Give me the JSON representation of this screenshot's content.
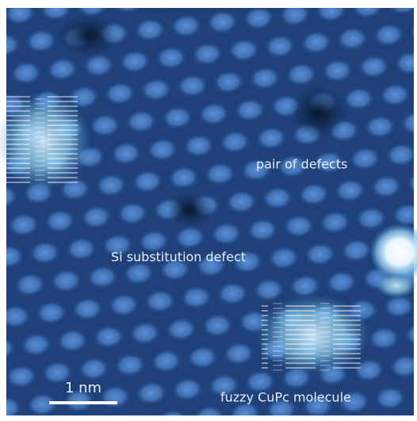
{
  "annotations": [
    {
      "label": "pair of defects"
    },
    {
      "label": "Si substitution defect"
    },
    {
      "label": "fuzzy CuPc molecule"
    }
  ],
  "scale_bar": {
    "label": "1 nm"
  }
}
